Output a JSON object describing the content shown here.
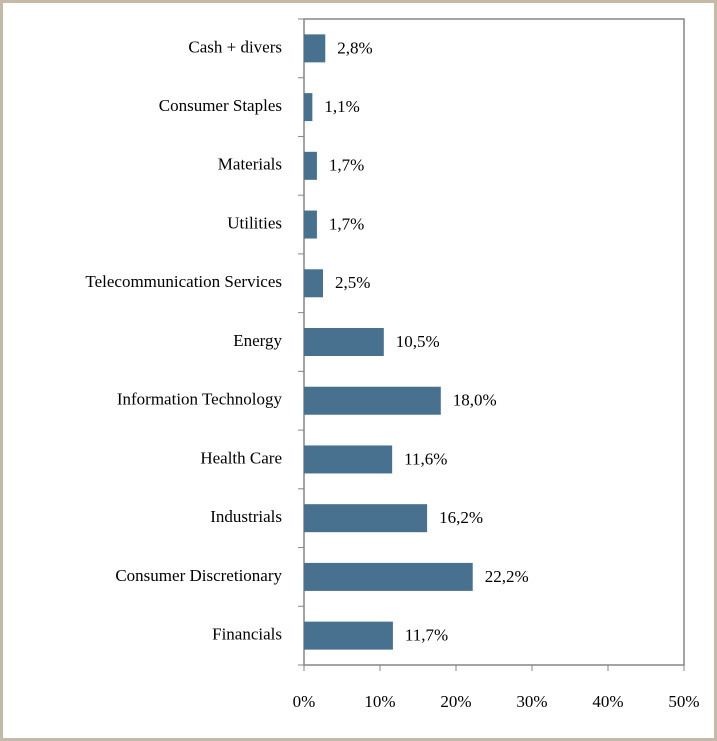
{
  "chart_data": {
    "type": "barh",
    "categories": [
      "Cash + divers",
      "Consumer Staples",
      "Materials",
      "Utilities",
      "Telecommunication Services",
      "Energy",
      "Information Technology",
      "Health Care",
      "Industrials",
      "Consumer Discretionary",
      "Financials"
    ],
    "values": [
      2.8,
      1.1,
      1.7,
      1.7,
      2.5,
      10.5,
      18.0,
      11.6,
      16.2,
      22.2,
      11.7
    ],
    "value_labels": [
      "2,8%",
      "1,1%",
      "1,7%",
      "1,7%",
      "2,5%",
      "10,5%",
      "18,0%",
      "11,6%",
      "16,2%",
      "22,2%",
      "11,7%"
    ],
    "color": "#47718f",
    "xlim": [
      0,
      50
    ],
    "xticks": [
      {
        "value": 0,
        "label": "0%"
      },
      {
        "value": 10,
        "label": "10%"
      },
      {
        "value": 20,
        "label": "20%"
      },
      {
        "value": 30,
        "label": "30%"
      },
      {
        "value": 40,
        "label": "40%"
      },
      {
        "value": 50,
        "label": "50%"
      }
    ],
    "grid": false
  }
}
